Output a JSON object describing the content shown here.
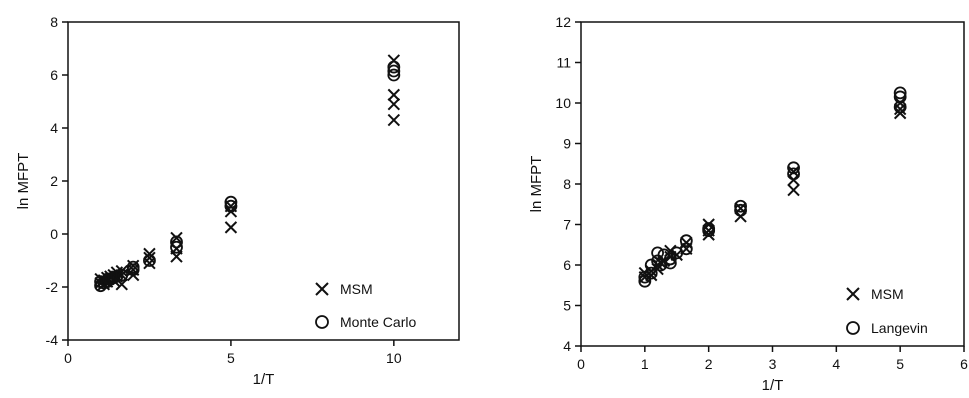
{
  "chart_data": [
    {
      "type": "scatter",
      "xlabel": "1/T",
      "ylabel": "ln MFPT",
      "xlim": [
        0,
        12
      ],
      "ylim": [
        -4,
        8
      ],
      "xticks": [
        0,
        5,
        10
      ],
      "yticks": [
        -4,
        -2,
        0,
        2,
        4,
        6,
        8
      ],
      "grid": false,
      "legend_position": "bottom-right",
      "series": [
        {
          "name": "MSM",
          "marker": "x",
          "points": [
            [
              1,
              -1.7
            ],
            [
              1,
              -1.85
            ],
            [
              1.1,
              -1.9
            ],
            [
              1.1,
              -1.75
            ],
            [
              1.2,
              -1.8
            ],
            [
              1.2,
              -1.65
            ],
            [
              1.25,
              -1.7
            ],
            [
              1.3,
              -1.6
            ],
            [
              1.4,
              -1.75
            ],
            [
              1.4,
              -1.55
            ],
            [
              1.5,
              -1.6
            ],
            [
              1.5,
              -1.45
            ],
            [
              1.65,
              -1.9
            ],
            [
              1.65,
              -1.55
            ],
            [
              1.65,
              -1.4
            ],
            [
              2,
              -1.55
            ],
            [
              2,
              -1.35
            ],
            [
              2,
              -1.2
            ],
            [
              2.5,
              -1.1
            ],
            [
              2.5,
              -0.9
            ],
            [
              2.5,
              -0.75
            ],
            [
              3.33,
              -0.85
            ],
            [
              3.33,
              -0.55
            ],
            [
              3.33,
              -0.15
            ],
            [
              5,
              0.25
            ],
            [
              5,
              0.85
            ],
            [
              5,
              1.05
            ],
            [
              10,
              4.3
            ],
            [
              10,
              4.9
            ],
            [
              10,
              5.25
            ],
            [
              10,
              6.55
            ]
          ]
        },
        {
          "name": "Monte Carlo",
          "marker": "o",
          "points": [
            [
              1,
              -1.95
            ],
            [
              1,
              -1.8
            ],
            [
              1.1,
              -1.85
            ],
            [
              1.2,
              -1.8
            ],
            [
              1.25,
              -1.7
            ],
            [
              1.3,
              -1.7
            ],
            [
              1.4,
              -1.65
            ],
            [
              1.5,
              -1.6
            ],
            [
              1.65,
              -1.55
            ],
            [
              2,
              -1.35
            ],
            [
              2,
              -1.25
            ],
            [
              2.5,
              -1.0
            ],
            [
              3.33,
              -0.5
            ],
            [
              3.33,
              -0.3
            ],
            [
              5,
              1.05
            ],
            [
              5,
              1.2
            ],
            [
              10,
              6.0
            ],
            [
              10,
              6.15
            ],
            [
              10,
              6.3
            ]
          ]
        }
      ]
    },
    {
      "type": "scatter",
      "xlabel": "1/T",
      "ylabel": "ln MFPT",
      "xlim": [
        0,
        6
      ],
      "ylim": [
        4,
        12
      ],
      "xticks": [
        0,
        1,
        2,
        3,
        4,
        5,
        6
      ],
      "yticks": [
        4,
        5,
        6,
        7,
        8,
        9,
        10,
        11,
        12
      ],
      "grid": false,
      "legend_position": "bottom-right",
      "series": [
        {
          "name": "MSM",
          "marker": "x",
          "points": [
            [
              1,
              5.8
            ],
            [
              1,
              5.7
            ],
            [
              1.1,
              5.85
            ],
            [
              1.1,
              5.75
            ],
            [
              1.2,
              6.0
            ],
            [
              1.2,
              5.9
            ],
            [
              1.25,
              6.05
            ],
            [
              1.3,
              6.1
            ],
            [
              1.4,
              6.2
            ],
            [
              1.4,
              6.35
            ],
            [
              1.5,
              6.25
            ],
            [
              1.65,
              6.4
            ],
            [
              1.65,
              6.55
            ],
            [
              2,
              6.75
            ],
            [
              2,
              6.85
            ],
            [
              2,
              7.0
            ],
            [
              2.5,
              7.2
            ],
            [
              2.5,
              7.4
            ],
            [
              3.33,
              7.85
            ],
            [
              3.33,
              8.1
            ],
            [
              3.33,
              8.3
            ],
            [
              5,
              9.75
            ],
            [
              5,
              9.85
            ],
            [
              5,
              10.0
            ]
          ]
        },
        {
          "name": "Langevin",
          "marker": "o",
          "points": [
            [
              1,
              5.6
            ],
            [
              1,
              5.7
            ],
            [
              1.1,
              5.8
            ],
            [
              1.1,
              6.0
            ],
            [
              1.2,
              6.1
            ],
            [
              1.2,
              6.3
            ],
            [
              1.25,
              6.0
            ],
            [
              1.3,
              6.25
            ],
            [
              1.4,
              6.15
            ],
            [
              1.4,
              6.05
            ],
            [
              1.5,
              6.3
            ],
            [
              1.65,
              6.4
            ],
            [
              1.65,
              6.6
            ],
            [
              2,
              6.85
            ],
            [
              2,
              6.9
            ],
            [
              2.5,
              7.35
            ],
            [
              2.5,
              7.45
            ],
            [
              3.33,
              8.25
            ],
            [
              3.33,
              8.4
            ],
            [
              5,
              9.9
            ],
            [
              5,
              10.15
            ],
            [
              5,
              10.25
            ]
          ]
        }
      ]
    }
  ]
}
